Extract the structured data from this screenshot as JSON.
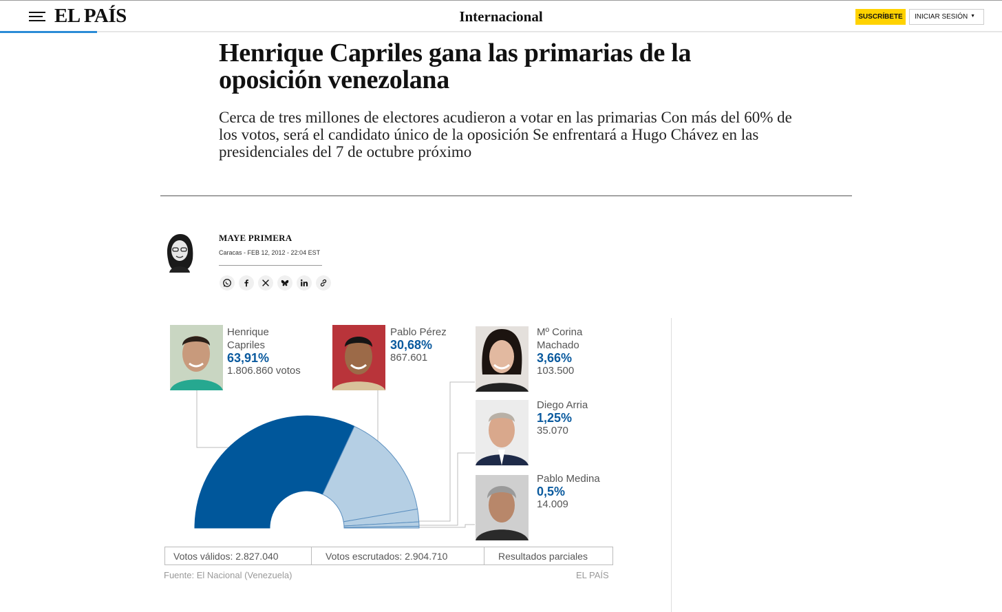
{
  "header": {
    "logo": "EL PAÍS",
    "section": "Internacional",
    "subscribe_label": "SUSCRÍBETE",
    "login_label": "INICIAR SESIÓN"
  },
  "article": {
    "headline": "Henrique Capriles gana las primarias de la oposición venezolana",
    "subhead": "Cerca de tres millones de electores acudieron a votar en las primarias Con más del 60% de los votos, será el candidato único de la oposición Se enfrentará a Hugo Chávez en las presidenciales del 7 de octubre próximo",
    "author": "MAYE PRIMERA",
    "dateline": "Caracas - FEB 12, 2012 - 22:04 EST"
  },
  "share_icons": [
    "whatsapp-icon",
    "facebook-icon",
    "x-icon",
    "bluesky-icon",
    "linkedin-icon",
    "link-icon"
  ],
  "graphic": {
    "candidates": [
      {
        "name_line1": "Henrique",
        "name_line2": "Capriles",
        "pct": "63,91%",
        "votes": "1.806.860 votos"
      },
      {
        "name_line1": "Pablo Pérez",
        "name_line2": "",
        "pct": "30,68%",
        "votes": "867.601"
      },
      {
        "name_line1": "Mº Corina",
        "name_line2": "Machado",
        "pct": "3,66%",
        "votes": "103.500"
      },
      {
        "name_line1": "Diego Arria",
        "name_line2": "",
        "pct": "1,25%",
        "votes": "35.070"
      },
      {
        "name_line1": "Pablo Medina",
        "name_line2": "",
        "pct": "0,5%",
        "votes": "14.009"
      }
    ],
    "footer": {
      "valid_votes": "Votos válidos: 2.827.040",
      "counted_votes": "Votos escrutados: 2.904.710",
      "status": "Resultados parciales"
    },
    "source": "Fuente: El Nacional (Venezuela)",
    "credit": "EL PAÍS",
    "colors": {
      "winner": "#00579b",
      "others": "#b5cfe4",
      "text_accent": "#0a5a9e"
    }
  },
  "chart_data": {
    "type": "pie",
    "categories": [
      "Henrique Capriles",
      "Pablo Pérez",
      "Mº Corina Machado",
      "Diego Arria",
      "Pablo Medina"
    ],
    "values": [
      63.91,
      30.68,
      3.66,
      1.25,
      0.5
    ]
  }
}
